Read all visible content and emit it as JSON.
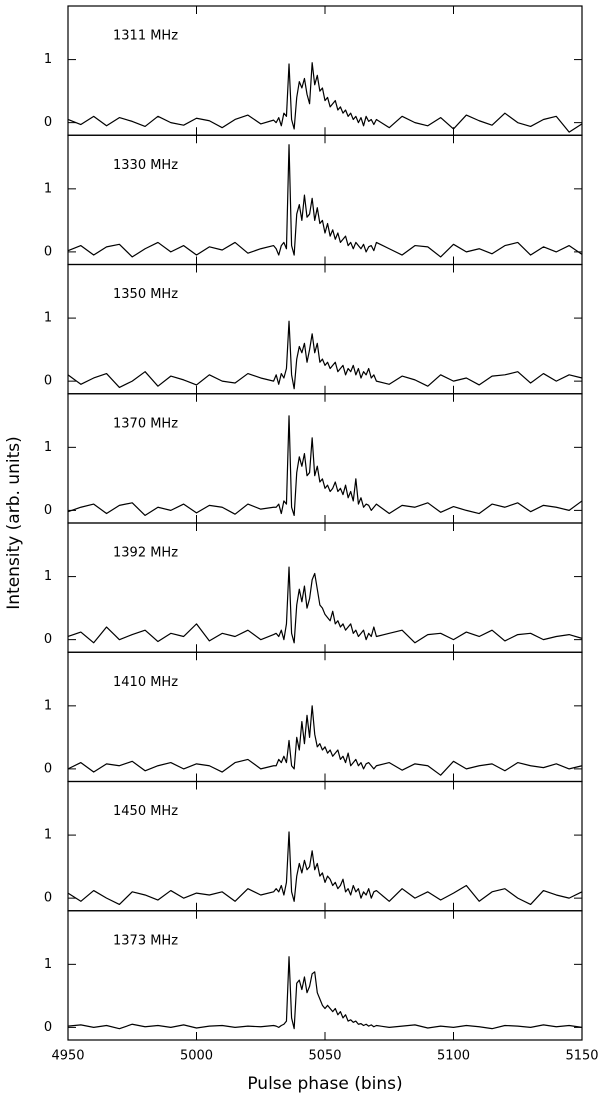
{
  "chart_data": {
    "type": "line",
    "color": "#000000",
    "xlabel": "Pulse phase (bins)",
    "ylabel": "Intensity (arb. units)",
    "xlim": [
      4950,
      5150
    ],
    "xticks": [
      4950,
      5000,
      5050,
      5100,
      5150
    ],
    "ylim": [
      -0.2,
      1.85
    ],
    "yticks": [
      0,
      1
    ],
    "x": [
      4950,
      4955,
      4960,
      4965,
      4970,
      4975,
      4980,
      4985,
      4990,
      4995,
      5000,
      5005,
      5010,
      5015,
      5020,
      5025,
      5030,
      5031,
      5032,
      5033,
      5034,
      5035,
      5036,
      5037,
      5038,
      5039,
      5040,
      5041,
      5042,
      5043,
      5044,
      5045,
      5046,
      5047,
      5048,
      5049,
      5050,
      5051,
      5052,
      5053,
      5054,
      5055,
      5056,
      5057,
      5058,
      5059,
      5060,
      5061,
      5062,
      5063,
      5064,
      5065,
      5066,
      5067,
      5068,
      5069,
      5070,
      5075,
      5080,
      5085,
      5090,
      5095,
      5100,
      5105,
      5110,
      5115,
      5120,
      5125,
      5130,
      5135,
      5140,
      5145,
      5150
    ],
    "series": [
      {
        "name": "1311 MHz",
        "values": [
          0.05,
          -0.03,
          0.1,
          -0.05,
          0.08,
          0.02,
          -0.06,
          0.1,
          0.0,
          -0.04,
          0.07,
          0.03,
          -0.08,
          0.05,
          0.12,
          -0.02,
          0.04,
          0.0,
          0.08,
          -0.05,
          0.15,
          0.1,
          0.93,
          0.05,
          -0.1,
          0.4,
          0.65,
          0.55,
          0.7,
          0.45,
          0.3,
          0.95,
          0.6,
          0.75,
          0.5,
          0.55,
          0.35,
          0.4,
          0.25,
          0.3,
          0.35,
          0.2,
          0.25,
          0.15,
          0.2,
          0.1,
          0.15,
          0.05,
          0.1,
          0.0,
          0.08,
          -0.05,
          0.1,
          0.02,
          0.05,
          -0.03,
          0.05,
          -0.08,
          0.1,
          0.0,
          -0.05,
          0.08,
          -0.1,
          0.12,
          0.03,
          -0.04,
          0.15,
          0.0,
          -0.06,
          0.05,
          0.1,
          -0.15,
          -0.02
        ]
      },
      {
        "name": "1330 MHz",
        "values": [
          0.02,
          0.1,
          -0.05,
          0.08,
          0.12,
          -0.08,
          0.05,
          0.15,
          0.0,
          0.1,
          -0.05,
          0.08,
          0.03,
          0.15,
          -0.02,
          0.05,
          0.1,
          0.05,
          -0.05,
          0.1,
          0.15,
          0.05,
          1.7,
          0.1,
          -0.05,
          0.6,
          0.75,
          0.5,
          0.9,
          0.55,
          0.6,
          0.85,
          0.5,
          0.7,
          0.45,
          0.5,
          0.3,
          0.45,
          0.25,
          0.35,
          0.2,
          0.3,
          0.15,
          0.2,
          0.25,
          0.1,
          0.15,
          0.05,
          0.15,
          0.1,
          0.05,
          0.12,
          0.0,
          0.08,
          0.1,
          0.02,
          0.15,
          0.05,
          -0.05,
          0.1,
          0.08,
          -0.08,
          0.12,
          0.0,
          0.05,
          -0.03,
          0.1,
          0.15,
          -0.05,
          0.08,
          0.0,
          0.1,
          -0.04
        ]
      },
      {
        "name": "1350 MHz",
        "values": [
          0.1,
          -0.05,
          0.05,
          0.12,
          -0.1,
          0.0,
          0.15,
          -0.08,
          0.08,
          0.02,
          -0.06,
          0.1,
          0.0,
          -0.03,
          0.12,
          0.05,
          0.0,
          0.1,
          -0.05,
          0.12,
          0.05,
          0.2,
          0.95,
          0.1,
          -0.12,
          0.35,
          0.55,
          0.45,
          0.6,
          0.3,
          0.5,
          0.75,
          0.45,
          0.6,
          0.3,
          0.35,
          0.25,
          0.3,
          0.2,
          0.25,
          0.3,
          0.15,
          0.2,
          0.25,
          0.1,
          0.2,
          0.15,
          0.25,
          0.1,
          0.2,
          0.05,
          0.15,
          0.1,
          0.2,
          0.05,
          0.1,
          0.0,
          -0.05,
          0.08,
          0.02,
          -0.08,
          0.1,
          0.0,
          0.05,
          -0.06,
          0.08,
          0.1,
          0.15,
          -0.03,
          0.12,
          0.0,
          0.1,
          0.05
        ]
      },
      {
        "name": "1370 MHz",
        "values": [
          -0.02,
          0.05,
          0.1,
          -0.05,
          0.08,
          0.12,
          -0.08,
          0.05,
          0.0,
          0.1,
          -0.04,
          0.08,
          0.05,
          -0.06,
          0.1,
          0.02,
          0.05,
          0.05,
          0.1,
          -0.05,
          0.15,
          0.1,
          1.5,
          0.05,
          -0.08,
          0.6,
          0.85,
          0.7,
          0.9,
          0.55,
          0.6,
          1.15,
          0.55,
          0.7,
          0.45,
          0.5,
          0.35,
          0.4,
          0.3,
          0.35,
          0.45,
          0.3,
          0.35,
          0.25,
          0.4,
          0.2,
          0.3,
          0.15,
          0.5,
          0.1,
          0.2,
          0.05,
          0.1,
          0.08,
          0.0,
          0.05,
          0.1,
          -0.05,
          0.08,
          0.05,
          0.12,
          -0.03,
          0.06,
          0.0,
          -0.05,
          0.1,
          0.05,
          0.12,
          -0.02,
          0.08,
          0.05,
          0.0,
          0.15
        ]
      },
      {
        "name": "1392 MHz",
        "values": [
          0.05,
          0.12,
          -0.05,
          0.2,
          0.0,
          0.08,
          0.15,
          -0.03,
          0.1,
          0.05,
          0.25,
          -0.02,
          0.1,
          0.05,
          0.15,
          0.0,
          0.08,
          0.1,
          0.05,
          0.15,
          0.0,
          0.25,
          1.15,
          0.1,
          -0.05,
          0.55,
          0.8,
          0.6,
          0.85,
          0.5,
          0.65,
          0.95,
          1.05,
          0.8,
          0.55,
          0.5,
          0.4,
          0.35,
          0.3,
          0.45,
          0.25,
          0.3,
          0.2,
          0.25,
          0.15,
          0.2,
          0.25,
          0.1,
          0.15,
          0.05,
          0.1,
          0.15,
          0.0,
          0.1,
          0.05,
          0.2,
          0.05,
          0.1,
          0.15,
          -0.05,
          0.08,
          0.1,
          0.0,
          0.12,
          0.05,
          0.15,
          -0.02,
          0.08,
          0.1,
          0.0,
          0.05,
          0.08,
          0.02
        ]
      },
      {
        "name": "1410 MHz",
        "values": [
          0.0,
          0.1,
          -0.05,
          0.08,
          0.05,
          0.12,
          -0.03,
          0.05,
          0.1,
          0.0,
          0.08,
          0.05,
          -0.05,
          0.1,
          0.15,
          0.0,
          0.05,
          0.05,
          0.15,
          0.1,
          0.2,
          0.1,
          0.45,
          0.05,
          0.0,
          0.5,
          0.3,
          0.75,
          0.4,
          0.85,
          0.5,
          1.0,
          0.55,
          0.35,
          0.4,
          0.3,
          0.35,
          0.25,
          0.3,
          0.2,
          0.25,
          0.3,
          0.15,
          0.2,
          0.1,
          0.25,
          0.05,
          0.1,
          0.15,
          0.05,
          0.1,
          0.0,
          0.08,
          0.1,
          0.05,
          0.0,
          0.05,
          0.1,
          -0.02,
          0.08,
          0.05,
          -0.1,
          0.12,
          0.0,
          0.05,
          0.08,
          -0.03,
          0.1,
          0.05,
          0.02,
          0.08,
          0.0,
          0.05
        ]
      },
      {
        "name": "1450 MHz",
        "values": [
          0.08,
          -0.05,
          0.12,
          0.0,
          -0.1,
          0.1,
          0.05,
          -0.03,
          0.12,
          0.0,
          0.08,
          0.05,
          0.1,
          -0.05,
          0.15,
          0.05,
          0.1,
          0.15,
          0.1,
          0.2,
          0.05,
          0.25,
          1.05,
          0.1,
          -0.05,
          0.35,
          0.55,
          0.4,
          0.6,
          0.45,
          0.5,
          0.75,
          0.45,
          0.55,
          0.35,
          0.4,
          0.25,
          0.35,
          0.3,
          0.2,
          0.25,
          0.15,
          0.2,
          0.3,
          0.1,
          0.15,
          0.05,
          0.2,
          0.1,
          0.15,
          0.0,
          0.1,
          0.05,
          0.15,
          0.0,
          0.1,
          0.12,
          -0.05,
          0.15,
          0.0,
          0.1,
          -0.03,
          0.08,
          0.2,
          -0.05,
          0.1,
          0.15,
          0.0,
          -0.1,
          0.12,
          0.05,
          0.0,
          0.1
        ]
      },
      {
        "name": "1373 MHz",
        "values": [
          0.02,
          0.04,
          0.0,
          0.03,
          -0.02,
          0.05,
          0.01,
          0.03,
          0.0,
          0.04,
          -0.01,
          0.02,
          0.03,
          0.0,
          0.02,
          0.01,
          0.03,
          0.02,
          0.0,
          0.03,
          0.05,
          0.1,
          1.12,
          0.15,
          -0.02,
          0.7,
          0.75,
          0.6,
          0.8,
          0.55,
          0.65,
          0.85,
          0.88,
          0.55,
          0.45,
          0.35,
          0.3,
          0.35,
          0.3,
          0.25,
          0.3,
          0.2,
          0.25,
          0.15,
          0.2,
          0.1,
          0.12,
          0.08,
          0.1,
          0.05,
          0.06,
          0.03,
          0.05,
          0.02,
          0.04,
          0.01,
          0.03,
          0.0,
          0.02,
          0.04,
          -0.01,
          0.02,
          0.0,
          0.03,
          0.01,
          -0.02,
          0.03,
          0.02,
          0.0,
          0.04,
          0.01,
          0.03,
          0.0
        ]
      }
    ]
  }
}
